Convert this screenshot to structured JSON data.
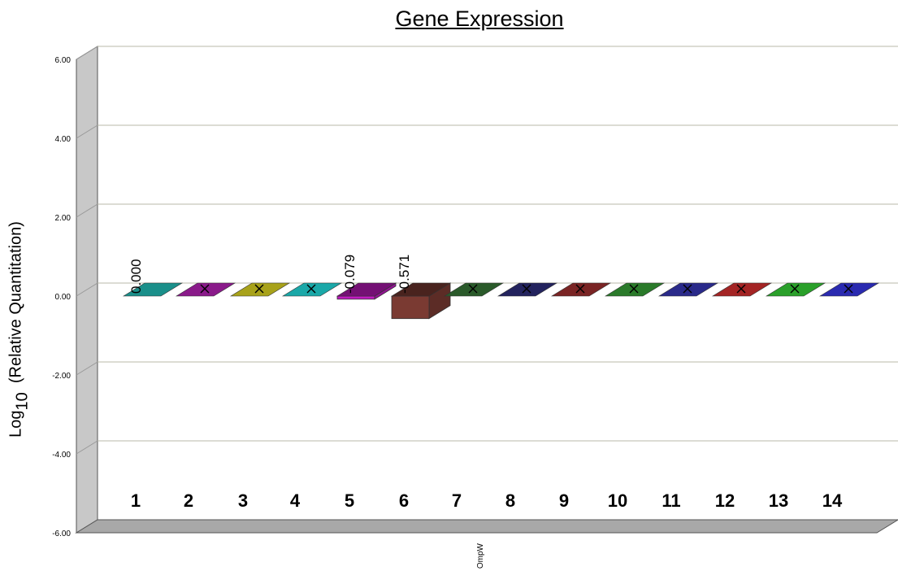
{
  "chart_data": {
    "type": "bar",
    "title": "Gene Expression",
    "ylabel_prefix": "Log",
    "ylabel_sub": "10",
    "ylabel_suffix": "(Relative Quantitation)",
    "xlabel": "OmpW",
    "ylim": [
      -6,
      6
    ],
    "yticks": [
      "6.00",
      "4.00",
      "2.00",
      "0.00",
      "-2.00",
      "-4.00",
      "-6.00"
    ],
    "grid": true,
    "categories": [
      "1",
      "2",
      "3",
      "4",
      "5",
      "6",
      "7",
      "8",
      "9",
      "10",
      "11",
      "12",
      "13",
      "14"
    ],
    "values": [
      0.0,
      0,
      0,
      0,
      -0.079,
      -0.571,
      0,
      0,
      0,
      0,
      0,
      0,
      0,
      0
    ],
    "data_labels": [
      "0.000",
      "",
      "",
      "",
      "-0.079",
      "-0.571",
      "",
      "",
      "",
      "",
      "",
      "",
      "",
      ""
    ],
    "markers": [
      false,
      true,
      true,
      true,
      false,
      false,
      true,
      true,
      true,
      true,
      true,
      true,
      true,
      true
    ],
    "colors": [
      "#1a8f8a",
      "#8a1a8a",
      "#a8a21a",
      "#1aa8a8",
      "#c21ac2",
      "#7a3a32",
      "#2a5a2a",
      "#23235e",
      "#7a2424",
      "#2a7a2a",
      "#2a2a8a",
      "#a42424",
      "#2aa02a",
      "#2a2ab0"
    ]
  }
}
